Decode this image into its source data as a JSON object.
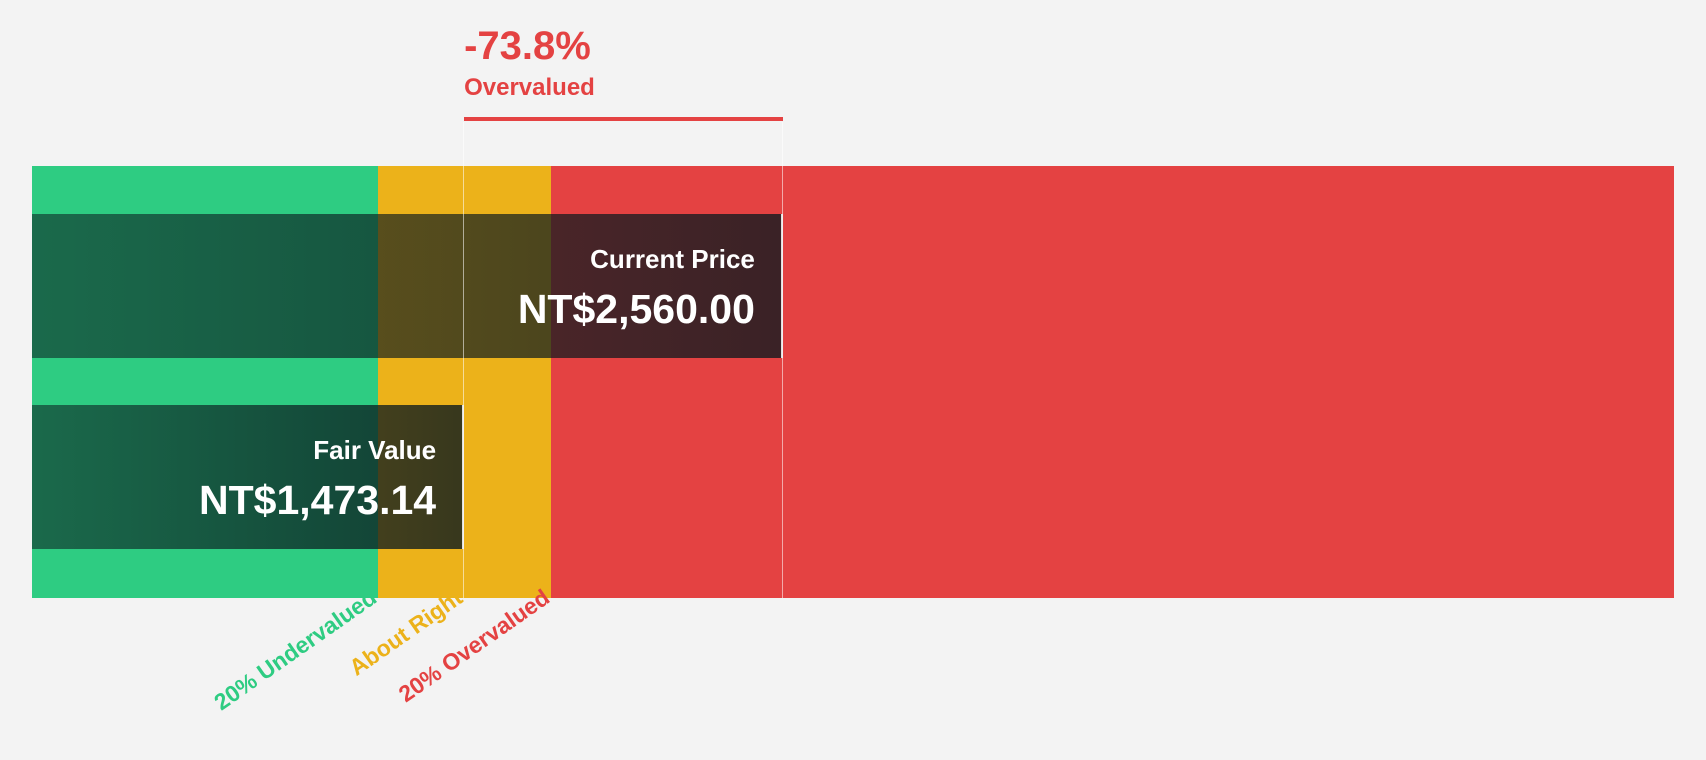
{
  "chart_data": {
    "type": "valuation-bar",
    "currency": "NT$",
    "headline": {
      "percent": "-73.8%",
      "label": "Overvalued",
      "color": "#e44242"
    },
    "current_price": {
      "label": "Current Price",
      "display": "NT$2,560.00",
      "value": 2560.0
    },
    "fair_value": {
      "label": "Fair Value",
      "display": "NT$1,473.14",
      "value": 1473.14
    },
    "zones": [
      {
        "name": "undervalued",
        "label": "20% Undervalued",
        "from_ratio": 0.0,
        "to_ratio": 0.8,
        "color": "#2ecc82"
      },
      {
        "name": "about-right",
        "label": "About Right",
        "from_ratio": 0.8,
        "to_ratio": 1.2,
        "color": "#ecb21a"
      },
      {
        "name": "overvalued",
        "label": "20% Overvalued",
        "from_ratio": 1.2,
        "to_ratio": 3.8,
        "color": "#e44242"
      }
    ],
    "axis_ratio_max": 3.8
  }
}
